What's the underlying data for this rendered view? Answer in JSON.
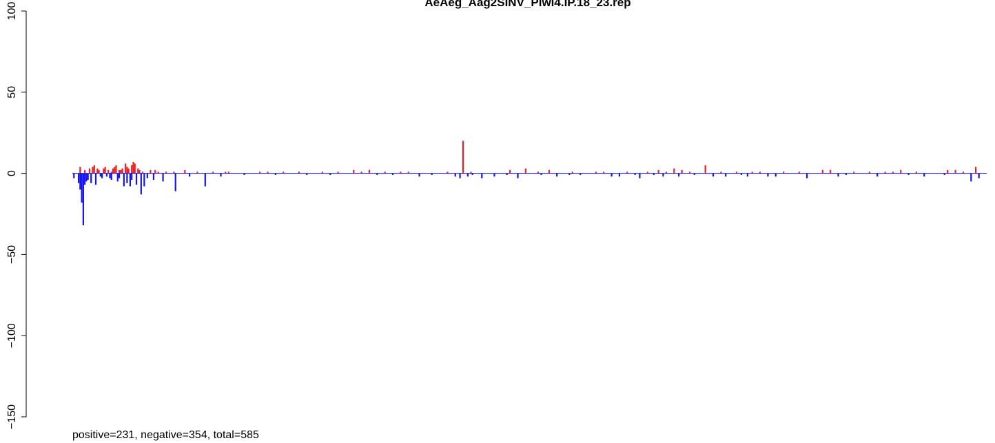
{
  "chart_data": {
    "type": "bar",
    "title": "AeAeg_Aag2SINV_Piwi4.IP.18_23.rep",
    "xlabel": "",
    "ylabel": "",
    "ylim": [
      -150,
      100
    ],
    "y_ticks": [
      100,
      50,
      0,
      -50,
      -100,
      -150
    ],
    "y_tick_labels": [
      "100",
      "50",
      "0",
      "−50",
      "−100",
      "−150"
    ],
    "annotation": "positive=231, negative=354, total=585",
    "grid": false,
    "legend": "none",
    "colors": {
      "positive": "#ee1c1c",
      "negative": "#1414f0",
      "baseline": "#1414f0"
    },
    "x_range": [
      0,
      585
    ],
    "positive": {
      "x": [
        5,
        8,
        11,
        13,
        14,
        16,
        17,
        20,
        21,
        23,
        25,
        26,
        27,
        28,
        30,
        31,
        32,
        34,
        35,
        36,
        38,
        39,
        40,
        42,
        43,
        45,
        50,
        53,
        55,
        60,
        65,
        72,
        80,
        90,
        98,
        100,
        120,
        125,
        135,
        145,
        160,
        170,
        180,
        185,
        190,
        200,
        210,
        215,
        240,
        250,
        255,
        280,
        290,
        298,
        305,
        320,
        335,
        340,
        355,
        368,
        375,
        380,
        385,
        390,
        395,
        405,
        415,
        425,
        435,
        440,
        455,
        465,
        480,
        485,
        500,
        510,
        520,
        525,
        530,
        540,
        560,
        565,
        570,
        578
      ],
      "values": [
        4,
        2,
        3,
        4,
        5,
        3,
        2,
        3,
        4,
        2,
        1,
        3,
        4,
        5,
        2,
        2,
        3,
        6,
        4,
        3,
        5,
        7,
        6,
        3,
        2,
        1,
        2,
        2,
        1,
        1,
        1,
        2,
        1,
        1,
        1,
        1,
        1,
        1,
        1,
        1,
        1,
        1,
        2,
        1,
        2,
        1,
        1,
        1,
        1,
        20,
        1,
        2,
        3,
        1,
        2,
        1,
        1,
        1,
        1,
        1,
        2,
        1,
        3,
        2,
        1,
        5,
        1,
        1,
        1,
        1,
        1,
        1,
        2,
        2,
        1,
        1,
        1,
        1,
        2,
        1,
        2,
        2,
        1,
        4
      ]
    },
    "negative": {
      "x": [
        1,
        4,
        5,
        6,
        7,
        8,
        9,
        10,
        12,
        15,
        18,
        19,
        22,
        24,
        25,
        29,
        30,
        33,
        35,
        37,
        38,
        41,
        44,
        46,
        48,
        52,
        58,
        66,
        75,
        85,
        95,
        110,
        130,
        150,
        165,
        195,
        205,
        222,
        230,
        245,
        248,
        253,
        256,
        262,
        270,
        278,
        285,
        300,
        310,
        318,
        325,
        345,
        350,
        360,
        363,
        372,
        378,
        388,
        398,
        410,
        418,
        428,
        432,
        445,
        450,
        470,
        490,
        495,
        515,
        535,
        545,
        558,
        575,
        580
      ],
      "values": [
        3,
        6,
        10,
        18,
        32,
        7,
        5,
        4,
        6,
        7,
        2,
        3,
        2,
        3,
        4,
        5,
        3,
        8,
        6,
        8,
        4,
        7,
        13,
        8,
        3,
        4,
        5,
        11,
        2,
        8,
        2,
        1,
        1,
        1,
        1,
        1,
        1,
        2,
        1,
        2,
        3,
        2,
        1,
        3,
        2,
        1,
        3,
        1,
        2,
        1,
        1,
        2,
        2,
        1,
        3,
        1,
        2,
        2,
        1,
        2,
        2,
        1,
        2,
        2,
        2,
        3,
        2,
        1,
        2,
        1,
        2,
        1,
        5,
        3
      ]
    }
  }
}
